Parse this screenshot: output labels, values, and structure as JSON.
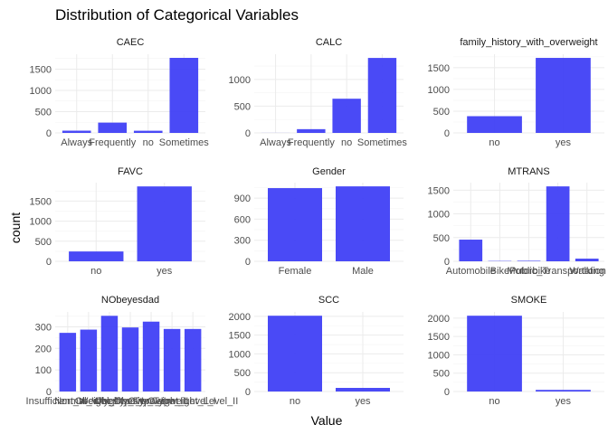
{
  "title": "Distribution of Categorical Variables",
  "xlabel": "Value",
  "ylabel": "count",
  "bar_color": "#4040f5",
  "chart_data": [
    {
      "type": "bar",
      "title": "CAEC",
      "categories": [
        "Always",
        "Frequently",
        "no",
        "Sometimes"
      ],
      "values": [
        53,
        242,
        51,
        1765
      ],
      "yticks": [
        0,
        500,
        1000,
        1500
      ],
      "ylim": [
        0,
        1850
      ]
    },
    {
      "type": "bar",
      "title": "CALC",
      "categories": [
        "Always",
        "Frequently",
        "no",
        "Sometimes"
      ],
      "values": [
        1,
        70,
        639,
        1401
      ],
      "yticks": [
        0,
        500,
        1000
      ],
      "ylim": [
        0,
        1470
      ]
    },
    {
      "type": "bar",
      "title": "family_history_with_overweight",
      "categories": [
        "no",
        "yes"
      ],
      "values": [
        385,
        1726
      ],
      "yticks": [
        0,
        500,
        1000,
        1500
      ],
      "ylim": [
        0,
        1810
      ]
    },
    {
      "type": "bar",
      "title": "FAVC",
      "categories": [
        "no",
        "yes"
      ],
      "values": [
        245,
        1866
      ],
      "yticks": [
        0,
        500,
        1000,
        1500
      ],
      "ylim": [
        0,
        1960
      ]
    },
    {
      "type": "bar",
      "title": "Gender",
      "categories": [
        "Female",
        "Male"
      ],
      "values": [
        1043,
        1068
      ],
      "yticks": [
        0,
        300,
        600,
        900
      ],
      "ylim": [
        0,
        1121
      ]
    },
    {
      "type": "bar",
      "title": "MTRANS",
      "categories": [
        "Automobile",
        "Bike",
        "Motorbike",
        "Public_Transportation",
        "Walking"
      ],
      "values": [
        457,
        7,
        11,
        1580,
        56
      ],
      "yticks": [
        0,
        500,
        1000,
        1500
      ],
      "ylim": [
        0,
        1659
      ]
    },
    {
      "type": "bar",
      "title": "NObeyesdad",
      "categories": [
        "Insufficient_Weight",
        "Normal_Weight",
        "Obesity_Type_I",
        "Obesity_Type_II",
        "Obesity_Type_III",
        "Overweight_Level_I",
        "Overweight_Level_II"
      ],
      "values": [
        272,
        287,
        351,
        297,
        324,
        290,
        290
      ],
      "yticks": [
        0,
        100,
        200,
        300
      ],
      "ylim": [
        0,
        369
      ]
    },
    {
      "type": "bar",
      "title": "SCC",
      "categories": [
        "no",
        "yes"
      ],
      "values": [
        2015,
        96
      ],
      "yticks": [
        0,
        500,
        1000,
        1500,
        2000
      ],
      "ylim": [
        0,
        2116
      ]
    },
    {
      "type": "bar",
      "title": "SMOKE",
      "categories": [
        "no",
        "yes"
      ],
      "values": [
        2067,
        44
      ],
      "yticks": [
        0,
        500,
        1000,
        1500,
        2000
      ],
      "ylim": [
        0,
        2170
      ]
    }
  ]
}
